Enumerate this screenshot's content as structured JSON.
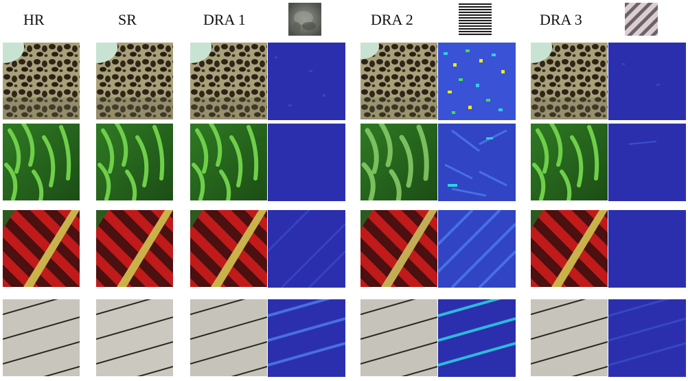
{
  "figure": {
    "columns": [
      {
        "key": "hr",
        "label": "HR"
      },
      {
        "key": "sr",
        "label": "SR"
      },
      {
        "key": "dra1",
        "label": "DRA 1",
        "kernel": "blurred-gray-texture-kernel"
      },
      {
        "key": "dra2",
        "label": "DRA 2",
        "kernel": "horizontal-stripes-kernel"
      },
      {
        "key": "dra3",
        "label": "DRA 3",
        "kernel": "diagonal-stripes-kernel"
      }
    ],
    "rows": [
      {
        "name": "leopard-texture"
      },
      {
        "name": "green-plant-leaves"
      },
      {
        "name": "red-yellow-diagonal-bars"
      },
      {
        "name": "wooden-planks"
      }
    ],
    "colors": {
      "error_map_base": "#2b2fae",
      "error_map_hot": "#f2e90f",
      "leaf_green": "#3f9a2d",
      "bar_red": "#c01a1a",
      "bar_yellow": "#c9b24a",
      "plank_gray": "#c8c5bd"
    }
  }
}
